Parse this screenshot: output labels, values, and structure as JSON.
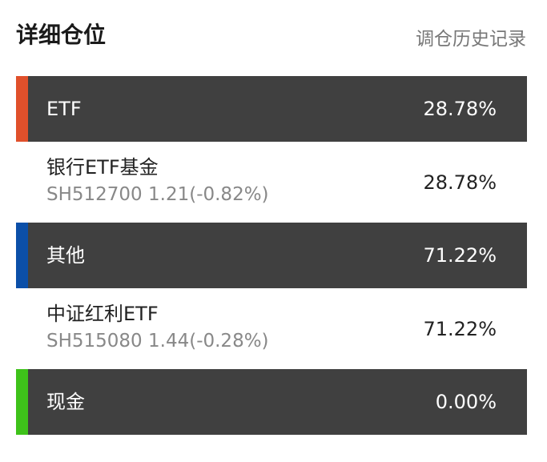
{
  "header": {
    "title": "详细仓位",
    "link": "调仓历史记录"
  },
  "groups": [
    {
      "name": "ETF",
      "percent": "28.78%",
      "color": "#e0502b",
      "holdings": [
        {
          "name": "银行ETF基金",
          "detail": "SH512700 1.21(-0.82%)",
          "percent": "28.78%"
        }
      ]
    },
    {
      "name": "其他",
      "percent": "71.22%",
      "color": "#0b4fa8",
      "holdings": [
        {
          "name": "中证红利ETF",
          "detail": "SH515080 1.44(-0.28%)",
          "percent": "71.22%"
        }
      ]
    },
    {
      "name": "现金",
      "percent": "0.00%",
      "color": "#3ec21a",
      "holdings": []
    }
  ]
}
